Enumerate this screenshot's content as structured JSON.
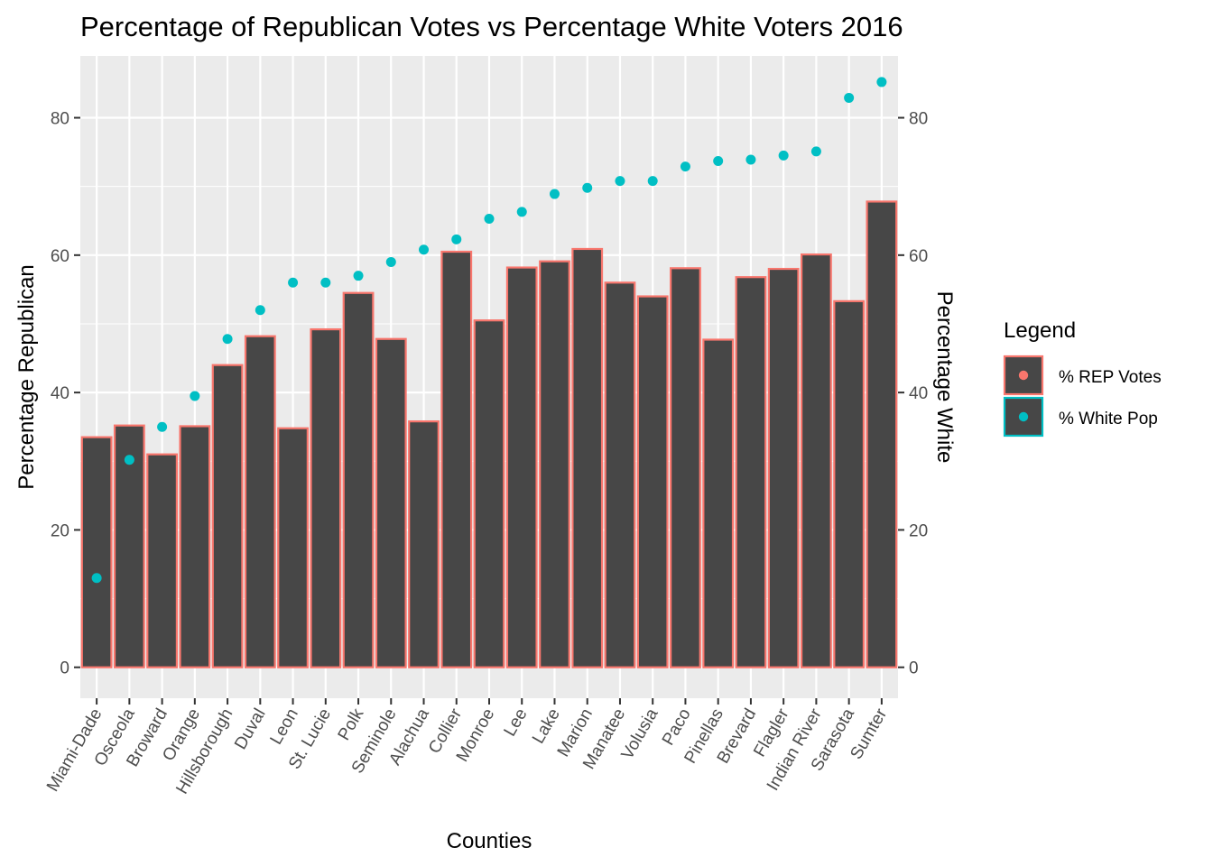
{
  "chart_data": {
    "type": "bar",
    "title": "Percentage of Republican Votes vs Percentage White Voters 2016",
    "xlabel": "Counties",
    "ylabel": "Percentage Republican",
    "y2label": "Percentage White",
    "ylim": [
      -4.5,
      89
    ],
    "yticks": [
      0,
      20,
      40,
      60,
      80
    ],
    "grid": true,
    "legend_position": "right",
    "categories": [
      "Miami-Dade",
      "Osceola",
      "Broward",
      "Orange",
      "Hillsborough",
      "Duval",
      "Leon",
      "St. Lucie",
      "Polk",
      "Seminole",
      "Alachua",
      "Collier",
      "Monroe",
      "Lee",
      "Lake",
      "Marion",
      "Manatee",
      "Volusia",
      "Paco",
      "Pinellas",
      "Brevard",
      "Flagler",
      "Indian River",
      "Sarasota",
      "Sumter"
    ],
    "series": [
      {
        "name": "% REP Votes",
        "type": "bar",
        "color": "#F8766D",
        "fill": "#474747",
        "values": [
          33.5,
          35.2,
          31.0,
          35.1,
          44.0,
          48.2,
          34.8,
          49.2,
          54.5,
          47.8,
          35.8,
          60.5,
          50.5,
          58.2,
          59.1,
          60.9,
          56.0,
          54.0,
          58.1,
          47.7,
          56.8,
          58.0,
          60.1,
          53.3,
          67.8
        ]
      },
      {
        "name": "% White Pop",
        "type": "scatter",
        "color": "#00BFC4",
        "values": [
          13.0,
          30.2,
          35.0,
          39.5,
          47.8,
          52.0,
          56.0,
          56.0,
          57.0,
          59.0,
          60.8,
          62.3,
          65.3,
          66.3,
          68.9,
          69.8,
          70.8,
          70.8,
          72.9,
          73.7,
          73.9,
          74.5,
          75.1,
          82.9,
          85.2
        ]
      }
    ]
  },
  "legend": {
    "title": "Legend",
    "items": [
      "% REP Votes",
      "% White Pop"
    ]
  }
}
